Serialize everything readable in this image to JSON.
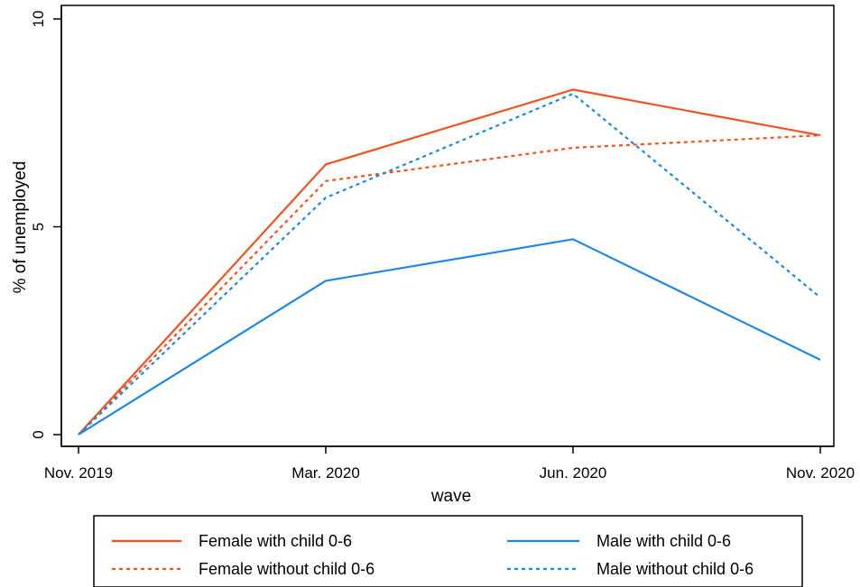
{
  "chart_data": {
    "type": "line",
    "categories": [
      "Nov. 2019",
      "Mar. 2020",
      "Jun. 2020",
      "Nov. 2020"
    ],
    "xlabel": "wave",
    "ylabel": "% of unemployed",
    "ylim": [
      0,
      10
    ],
    "yticks": [
      0,
      5,
      10
    ],
    "grid": false,
    "legend_position": "bottom",
    "series": [
      {
        "name": "Female with child 0-6",
        "values": [
          0,
          6.5,
          8.3,
          7.2
        ],
        "color": "#f4511e",
        "style": "solid"
      },
      {
        "name": "Female without child 0-6",
        "values": [
          0,
          6.1,
          6.9,
          7.2
        ],
        "color": "#f4511e",
        "style": "dotted"
      },
      {
        "name": "Male with child 0-6",
        "values": [
          0,
          3.7,
          4.7,
          1.8
        ],
        "color": "#1e88e5",
        "style": "solid"
      },
      {
        "name": "Male without child 0-6",
        "values": [
          0,
          5.7,
          8.2,
          3.3
        ],
        "color": "#1e88e5",
        "style": "dotted"
      }
    ]
  }
}
